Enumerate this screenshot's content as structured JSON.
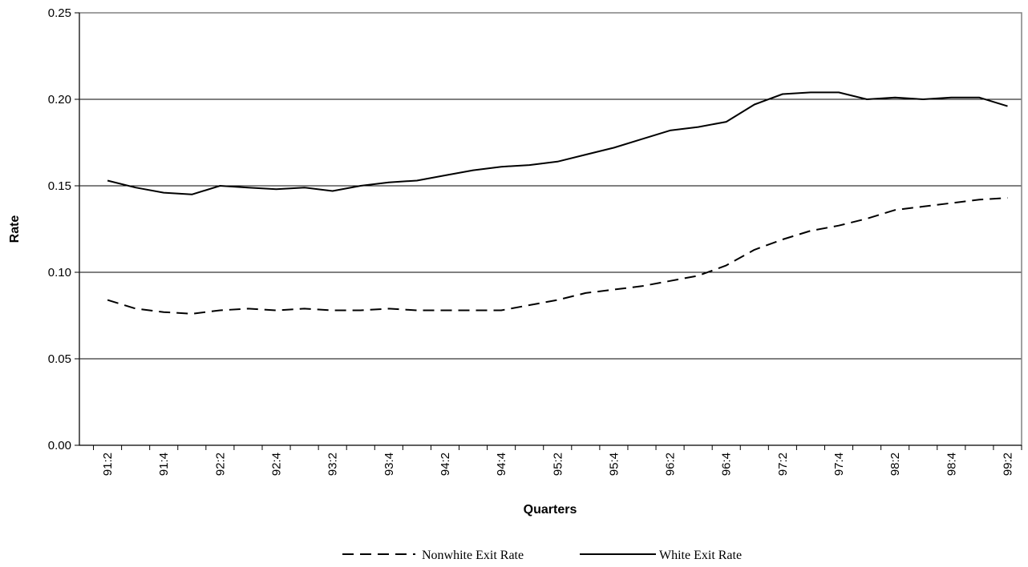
{
  "chart_data": {
    "type": "line",
    "title": "",
    "xlabel": "Quarters",
    "ylabel": "Rate",
    "ylim": [
      0,
      0.25
    ],
    "yticks": [
      "0.00",
      "0.05",
      "0.10",
      "0.15",
      "0.20",
      "0.25"
    ],
    "grid": "horizontal",
    "legend_position": "bottom",
    "x": [
      "91:2",
      "91:3",
      "91:4",
      "92:1",
      "92:2",
      "92:3",
      "92:4",
      "93:1",
      "93:2",
      "93:3",
      "93:4",
      "94:1",
      "94:2",
      "94:3",
      "94:4",
      "95:1",
      "95:2",
      "95:3",
      "95:4",
      "96:1",
      "96:2",
      "96:3",
      "96:4",
      "97:1",
      "97:2",
      "97:3",
      "97:4",
      "98:1",
      "98:2",
      "98:3",
      "98:4",
      "99:1",
      "99:2"
    ],
    "xtick_labels": [
      "91:2",
      "",
      "91:4",
      "",
      "92:2",
      "",
      "92:4",
      "",
      "93:2",
      "",
      "93:4",
      "",
      "94:2",
      "",
      "94:4",
      "",
      "95:2",
      "",
      "95:4",
      "",
      "96:2",
      "",
      "96:4",
      "",
      "97:2",
      "",
      "97:4",
      "",
      "98:2",
      "",
      "98:4",
      "",
      "99:2"
    ],
    "series": [
      {
        "name": "Nonwhite Exit Rate",
        "style": "dashed",
        "color": "#000000",
        "values": [
          0.084,
          0.079,
          0.077,
          0.076,
          0.078,
          0.079,
          0.078,
          0.079,
          0.078,
          0.078,
          0.079,
          0.078,
          0.078,
          0.078,
          0.078,
          0.081,
          0.084,
          0.088,
          0.09,
          0.092,
          0.095,
          0.098,
          0.104,
          0.113,
          0.119,
          0.124,
          0.127,
          0.131,
          0.136,
          0.138,
          0.14,
          0.142,
          0.143
        ]
      },
      {
        "name": "White Exit Rate",
        "style": "solid",
        "color": "#000000",
        "values": [
          0.153,
          0.149,
          0.146,
          0.145,
          0.15,
          0.149,
          0.148,
          0.149,
          0.147,
          0.15,
          0.152,
          0.153,
          0.156,
          0.159,
          0.161,
          0.162,
          0.164,
          0.168,
          0.172,
          0.177,
          0.182,
          0.184,
          0.187,
          0.197,
          0.203,
          0.204,
          0.204,
          0.2,
          0.201,
          0.2,
          0.201,
          0.201,
          0.196
        ]
      }
    ]
  }
}
